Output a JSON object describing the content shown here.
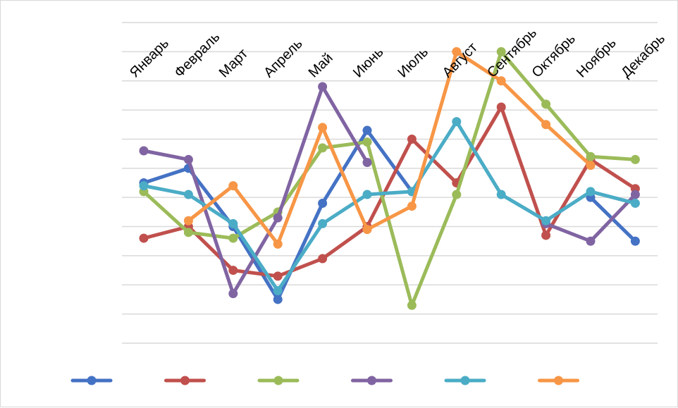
{
  "chart_data": {
    "type": "line",
    "title": "",
    "xlabel": "",
    "ylabel": "",
    "categories": [
      "Январь",
      "Февраль",
      "Март",
      "Апрель",
      "Май",
      "Июнь",
      "Июль",
      "Август",
      "Сентябрь",
      "Октябрь",
      "Ноябрь",
      "Декабрь"
    ],
    "ylim": [
      0,
      11
    ],
    "grid": true,
    "legend_position": "bottom",
    "series": [
      {
        "color": "#4472C4",
        "values": [
          5.5,
          6.0,
          4.0,
          1.5,
          4.8,
          7.3,
          5.2,
          null,
          null,
          null,
          5.0,
          3.5
        ]
      },
      {
        "color": "#C0504D",
        "values": [
          3.6,
          4.0,
          2.5,
          2.3,
          2.9,
          4.0,
          7.0,
          5.5,
          8.1,
          3.7,
          6.3,
          5.3
        ]
      },
      {
        "color": "#9BBB59",
        "values": [
          5.2,
          3.8,
          3.6,
          4.5,
          6.7,
          6.9,
          1.3,
          5.1,
          10.0,
          8.2,
          6.4,
          6.3
        ]
      },
      {
        "color": "#8064A2",
        "values": [
          6.6,
          6.3,
          1.7,
          4.3,
          8.8,
          6.2,
          null,
          null,
          null,
          4.1,
          3.5,
          5.1
        ]
      },
      {
        "color": "#4BACC6",
        "values": [
          5.4,
          5.1,
          4.1,
          1.8,
          4.1,
          5.1,
          5.2,
          7.6,
          5.1,
          4.2,
          5.2,
          4.8
        ]
      },
      {
        "color": "#F79646",
        "values": [
          null,
          4.2,
          5.4,
          3.4,
          7.4,
          3.9,
          4.7,
          10.0,
          9.0,
          7.5,
          6.1,
          null
        ]
      }
    ]
  }
}
